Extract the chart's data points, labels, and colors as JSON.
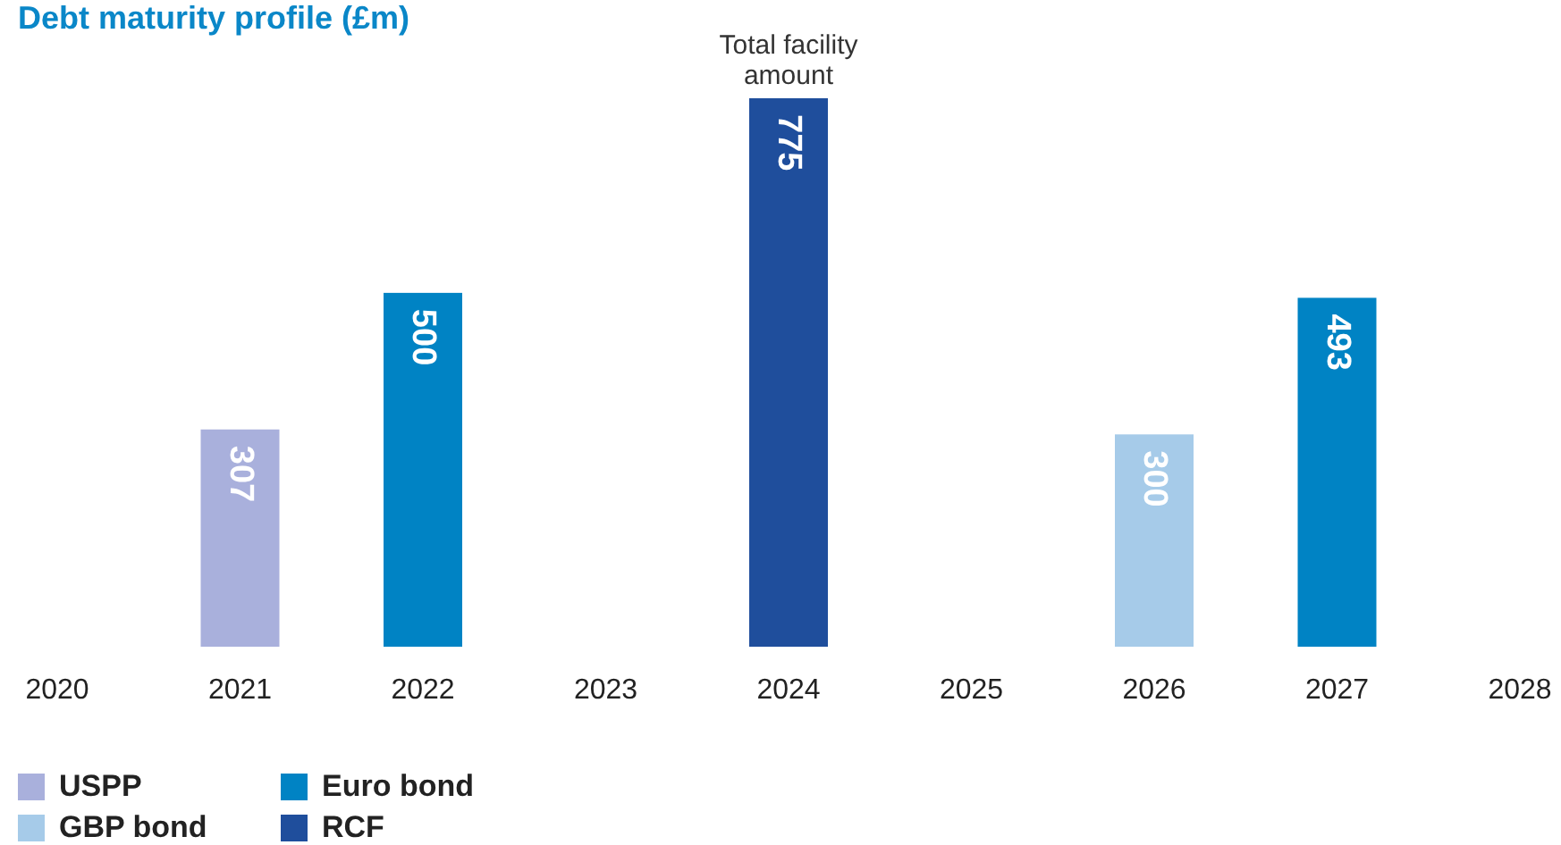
{
  "chart_data": {
    "type": "bar",
    "title": "Debt maturity profile (£m)",
    "categories": [
      "2020",
      "2021",
      "2022",
      "2023",
      "2024",
      "2025",
      "2026",
      "2027",
      "2028"
    ],
    "stacked": true,
    "data_labels": true,
    "legend": "bottom",
    "annotations": [
      {
        "text": "Total facility amount",
        "x": "2024",
        "y": 775
      }
    ],
    "series": [
      {
        "name": "USPP",
        "color": "#a9b0dc",
        "values": [
          null,
          307,
          null,
          null,
          null,
          null,
          null,
          null,
          null
        ]
      },
      {
        "name": "Euro bond",
        "color": "#0083c4",
        "values": [
          null,
          null,
          500,
          null,
          null,
          null,
          null,
          493,
          null
        ]
      },
      {
        "name": "GBP bond",
        "color": "#a6cbe9",
        "values": [
          null,
          null,
          null,
          null,
          null,
          null,
          300,
          null,
          null
        ]
      },
      {
        "name": "RCF",
        "color": "#1f4e9c",
        "values": [
          null,
          null,
          null,
          null,
          775,
          null,
          null,
          null,
          null
        ]
      }
    ]
  }
}
